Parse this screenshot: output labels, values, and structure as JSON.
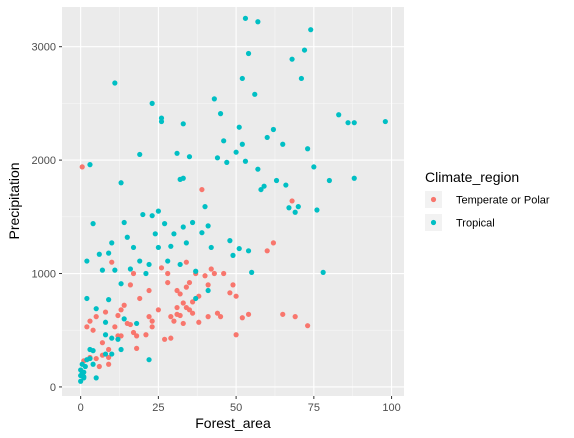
{
  "chart_data": {
    "type": "scatter",
    "title": "",
    "xlabel": "Forest_area",
    "ylabel": "Precipitation",
    "xlim": [
      -6,
      104
    ],
    "ylim": [
      -80,
      3350
    ],
    "x_ticks": [
      0,
      25,
      50,
      75,
      100
    ],
    "y_ticks": [
      0,
      1000,
      2000,
      3000
    ],
    "grid": true,
    "legend": {
      "title": "Climate_region",
      "placement": "right"
    },
    "series": [
      {
        "name": "Temperate or Polar",
        "color": "#F8766D",
        "points": [
          [
            0.5,
            1940
          ],
          [
            2,
            530
          ],
          [
            1,
            230
          ],
          [
            3,
            580
          ],
          [
            3,
            260
          ],
          [
            4,
            500
          ],
          [
            5,
            250
          ],
          [
            5,
            620
          ],
          [
            6,
            180
          ],
          [
            7,
            280
          ],
          [
            7,
            390
          ],
          [
            8,
            660
          ],
          [
            9,
            330
          ],
          [
            9,
            200
          ],
          [
            9,
            260
          ],
          [
            10,
            1100
          ],
          [
            11,
            530
          ],
          [
            12,
            630
          ],
          [
            12,
            450
          ],
          [
            13,
            450
          ],
          [
            13,
            680
          ],
          [
            14,
            720
          ],
          [
            15,
            560
          ],
          [
            16,
            900
          ],
          [
            16,
            550
          ],
          [
            17,
            1000
          ],
          [
            17,
            480
          ],
          [
            18,
            450
          ],
          [
            18,
            340
          ],
          [
            19,
            780
          ],
          [
            21,
            460
          ],
          [
            22,
            850
          ],
          [
            22,
            620
          ],
          [
            23,
            530
          ],
          [
            23,
            580
          ],
          [
            25,
            680
          ],
          [
            26,
            1050
          ],
          [
            27,
            420
          ],
          [
            28,
            1000
          ],
          [
            28,
            920
          ],
          [
            29,
            430
          ],
          [
            29,
            620
          ],
          [
            30,
            580
          ],
          [
            31,
            700
          ],
          [
            31,
            850
          ],
          [
            31,
            640
          ],
          [
            32,
            820
          ],
          [
            32,
            630
          ],
          [
            33,
            560
          ],
          [
            33,
            740
          ],
          [
            34,
            880
          ],
          [
            34,
            700
          ],
          [
            34,
            1100
          ],
          [
            35,
            680
          ],
          [
            35,
            920
          ],
          [
            36,
            650
          ],
          [
            36,
            750
          ],
          [
            37,
            1000
          ],
          [
            38,
            800
          ],
          [
            38,
            570
          ],
          [
            39,
            1740
          ],
          [
            40,
            980
          ],
          [
            41,
            620
          ],
          [
            41,
            900
          ],
          [
            42,
            1040
          ],
          [
            43,
            1000
          ],
          [
            44,
            650
          ],
          [
            45,
            620
          ],
          [
            46,
            1000
          ],
          [
            48,
            830
          ],
          [
            49,
            900
          ],
          [
            50,
            800
          ],
          [
            50,
            460
          ],
          [
            52,
            610
          ],
          [
            54,
            640
          ],
          [
            60,
            1200
          ],
          [
            62,
            1270
          ],
          [
            65,
            640
          ],
          [
            68,
            1640
          ],
          [
            69,
            620
          ],
          [
            73,
            540
          ]
        ]
      },
      {
        "name": "Tropical",
        "color": "#00BFC4",
        "points": [
          [
            0,
            50
          ],
          [
            0,
            100
          ],
          [
            0,
            150
          ],
          [
            0.5,
            120
          ],
          [
            0.5,
            200
          ],
          [
            1,
            80
          ],
          [
            1,
            90
          ],
          [
            1,
            130
          ],
          [
            1.5,
            180
          ],
          [
            2,
            780
          ],
          [
            2,
            1110
          ],
          [
            2,
            240
          ],
          [
            3,
            330
          ],
          [
            3,
            1960
          ],
          [
            3,
            250
          ],
          [
            4,
            1440
          ],
          [
            4,
            200
          ],
          [
            4,
            320
          ],
          [
            5,
            690
          ],
          [
            5,
            80
          ],
          [
            6,
            1170
          ],
          [
            7,
            1030
          ],
          [
            8,
            460
          ],
          [
            8,
            570
          ],
          [
            8,
            290
          ],
          [
            9,
            770
          ],
          [
            9,
            1180
          ],
          [
            10,
            1270
          ],
          [
            10,
            430
          ],
          [
            10,
            290
          ],
          [
            11,
            2680
          ],
          [
            11,
            1030
          ],
          [
            12,
            420
          ],
          [
            13,
            1800
          ],
          [
            13,
            330
          ],
          [
            13,
            910
          ],
          [
            14,
            600
          ],
          [
            14,
            1450
          ],
          [
            15,
            1320
          ],
          [
            16,
            1040
          ],
          [
            17,
            1230
          ],
          [
            18,
            560
          ],
          [
            19,
            2050
          ],
          [
            19,
            1110
          ],
          [
            20,
            1520
          ],
          [
            21,
            1000
          ],
          [
            22,
            240
          ],
          [
            22,
            1080
          ],
          [
            23,
            2500
          ],
          [
            23,
            1510
          ],
          [
            24,
            1350
          ],
          [
            25,
            1230
          ],
          [
            25,
            1550
          ],
          [
            26,
            2370
          ],
          [
            26,
            2340
          ],
          [
            27,
            1440
          ],
          [
            28,
            1110
          ],
          [
            29,
            1240
          ],
          [
            30,
            1350
          ],
          [
            31,
            2060
          ],
          [
            32,
            1830
          ],
          [
            32,
            1080
          ],
          [
            33,
            2320
          ],
          [
            33,
            1840
          ],
          [
            33,
            1410
          ],
          [
            34,
            1270
          ],
          [
            35,
            2030
          ],
          [
            36,
            1450
          ],
          [
            37,
            1020
          ],
          [
            37,
            780
          ],
          [
            39,
            1360
          ],
          [
            40,
            1590
          ],
          [
            41,
            1420
          ],
          [
            41,
            850
          ],
          [
            42,
            1230
          ],
          [
            43,
            2540
          ],
          [
            44,
            2020
          ],
          [
            45,
            2410
          ],
          [
            46,
            2170
          ],
          [
            47,
            1980
          ],
          [
            48,
            1290
          ],
          [
            49,
            1160
          ],
          [
            50,
            2070
          ],
          [
            51,
            2290
          ],
          [
            51,
            1220
          ],
          [
            52,
            2720
          ],
          [
            52,
            2140
          ],
          [
            53,
            1990
          ],
          [
            53,
            3250
          ],
          [
            54,
            2940
          ],
          [
            54,
            1200
          ],
          [
            55,
            1010
          ],
          [
            56,
            2580
          ],
          [
            57,
            3220
          ],
          [
            57,
            1920
          ],
          [
            58,
            1740
          ],
          [
            59,
            1770
          ],
          [
            60,
            2200
          ],
          [
            62,
            2270
          ],
          [
            63,
            1820
          ],
          [
            65,
            2140
          ],
          [
            66,
            1780
          ],
          [
            67,
            1580
          ],
          [
            68,
            2890
          ],
          [
            69,
            1540
          ],
          [
            70,
            1590
          ],
          [
            71,
            2720
          ],
          [
            72,
            2970
          ],
          [
            73,
            2100
          ],
          [
            74,
            3150
          ],
          [
            75,
            1940
          ],
          [
            76,
            1560
          ],
          [
            78,
            1010
          ],
          [
            80,
            1820
          ],
          [
            83,
            2400
          ],
          [
            86,
            2330
          ],
          [
            88,
            1840
          ],
          [
            88,
            2330
          ],
          [
            98,
            2340
          ]
        ]
      }
    ]
  }
}
